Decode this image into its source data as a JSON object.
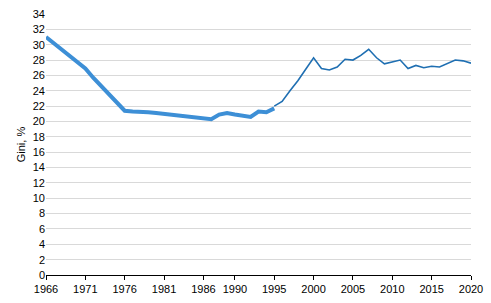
{
  "chart_data": {
    "type": "line",
    "y_label": "Gini, %",
    "xlim": [
      1966,
      2020
    ],
    "xticks": [
      1966,
      1971,
      1976,
      1981,
      1986,
      1990,
      1995,
      2000,
      2005,
      2010,
      2015,
      2020
    ],
    "ylim": [
      0,
      34
    ],
    "yticks": [
      0,
      2,
      4,
      6,
      8,
      10,
      12,
      14,
      16,
      18,
      20,
      22,
      24,
      26,
      28,
      30,
      32,
      34
    ],
    "grid": true,
    "series": [
      {
        "color": "#3d8fd6",
        "line_style": "thick",
        "x": [
          1966,
          1967,
          1968,
          1969,
          1970,
          1971,
          1972,
          1973,
          1974,
          1975,
          1976,
          1977,
          1978,
          1979,
          1980,
          1981,
          1982,
          1983,
          1984,
          1985,
          1986,
          1987,
          1988,
          1989,
          1990,
          1991,
          1992,
          1993,
          1994,
          1995
        ],
        "values": [
          31.0,
          30.2,
          29.4,
          28.5,
          27.7,
          26.9,
          25.7,
          24.6,
          23.5,
          22.4,
          21.4,
          21.3,
          21.3,
          21.2,
          21.1,
          21.0,
          20.9,
          20.8,
          20.6,
          20.6,
          20.5,
          20.3,
          20.9,
          21.1,
          20.9,
          20.7,
          20.6,
          21.3,
          21.2,
          21.7
        ]
      },
      {
        "color": "#1f6fb2",
        "line_style": "thin",
        "x": [
          1995,
          1996,
          1997,
          1998,
          1999,
          2000,
          2001,
          2002,
          2003,
          2004,
          2005,
          2006,
          2007,
          2008,
          2009,
          2010,
          2011,
          2012,
          2013,
          2014,
          2015,
          2016,
          2017,
          2018,
          2019,
          2020
        ],
        "values": [
          22.0,
          22.6,
          24.0,
          25.3,
          26.8,
          28.3,
          26.9,
          26.7,
          27.1,
          28.1,
          28.0,
          28.6,
          29.4,
          28.3,
          27.5,
          27.7,
          28.0,
          26.9,
          27.3,
          27.0,
          27.2,
          27.1,
          27.5,
          28.0,
          27.9,
          27.6
        ]
      }
    ]
  }
}
